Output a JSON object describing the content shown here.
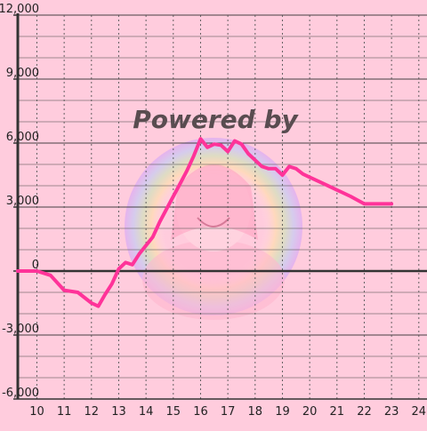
{
  "colors": {
    "background": "#ffccdd",
    "line": "#ff3399",
    "axis": "#333333",
    "grid_major": "#333333",
    "grid_minor": "#555555",
    "text": "#222222"
  },
  "watermark": {
    "text": "Powered by",
    "image": "anime-mascot-watermark"
  },
  "chart_data": {
    "type": "line",
    "x_ticks": [
      "10",
      "11",
      "12",
      "13",
      "14",
      "15",
      "16",
      "17",
      "18",
      "19",
      "20",
      "21",
      "22",
      "23",
      "24"
    ],
    "y_ticks": [
      "-6,000",
      "-3,000",
      "0",
      "3,000",
      "6,000",
      "9,000",
      "12,000"
    ],
    "xlim": [
      9.3,
      24.3
    ],
    "ylim": [
      -6000,
      12000
    ],
    "grid": true,
    "series": [
      {
        "x": [
          9.3,
          10.0,
          10.5,
          11.0,
          11.5,
          12.0,
          12.25,
          12.5,
          12.75,
          13.0,
          13.25,
          13.5,
          13.75,
          14.0,
          14.25,
          14.5,
          14.75,
          15.0,
          15.25,
          15.5,
          15.75,
          16.0,
          16.25,
          16.5,
          16.75,
          17.0,
          17.25,
          17.5,
          17.75,
          18.0,
          18.25,
          18.5,
          18.75,
          19.0,
          19.25,
          19.5,
          19.75,
          20.0,
          20.5,
          21.0,
          21.5,
          22.0,
          22.5,
          23.0
        ],
        "y": [
          0,
          0,
          -200,
          -900,
          -1000,
          -1500,
          -1650,
          -1100,
          -600,
          100,
          400,
          300,
          800,
          1200,
          1600,
          2300,
          2900,
          3500,
          4100,
          4700,
          5400,
          6200,
          5800,
          5950,
          5900,
          5600,
          6100,
          5950,
          5500,
          5200,
          4900,
          4800,
          4800,
          4500,
          4900,
          4800,
          4550,
          4400,
          4100,
          3800,
          3500,
          3150,
          3150,
          3150
        ]
      }
    ]
  }
}
